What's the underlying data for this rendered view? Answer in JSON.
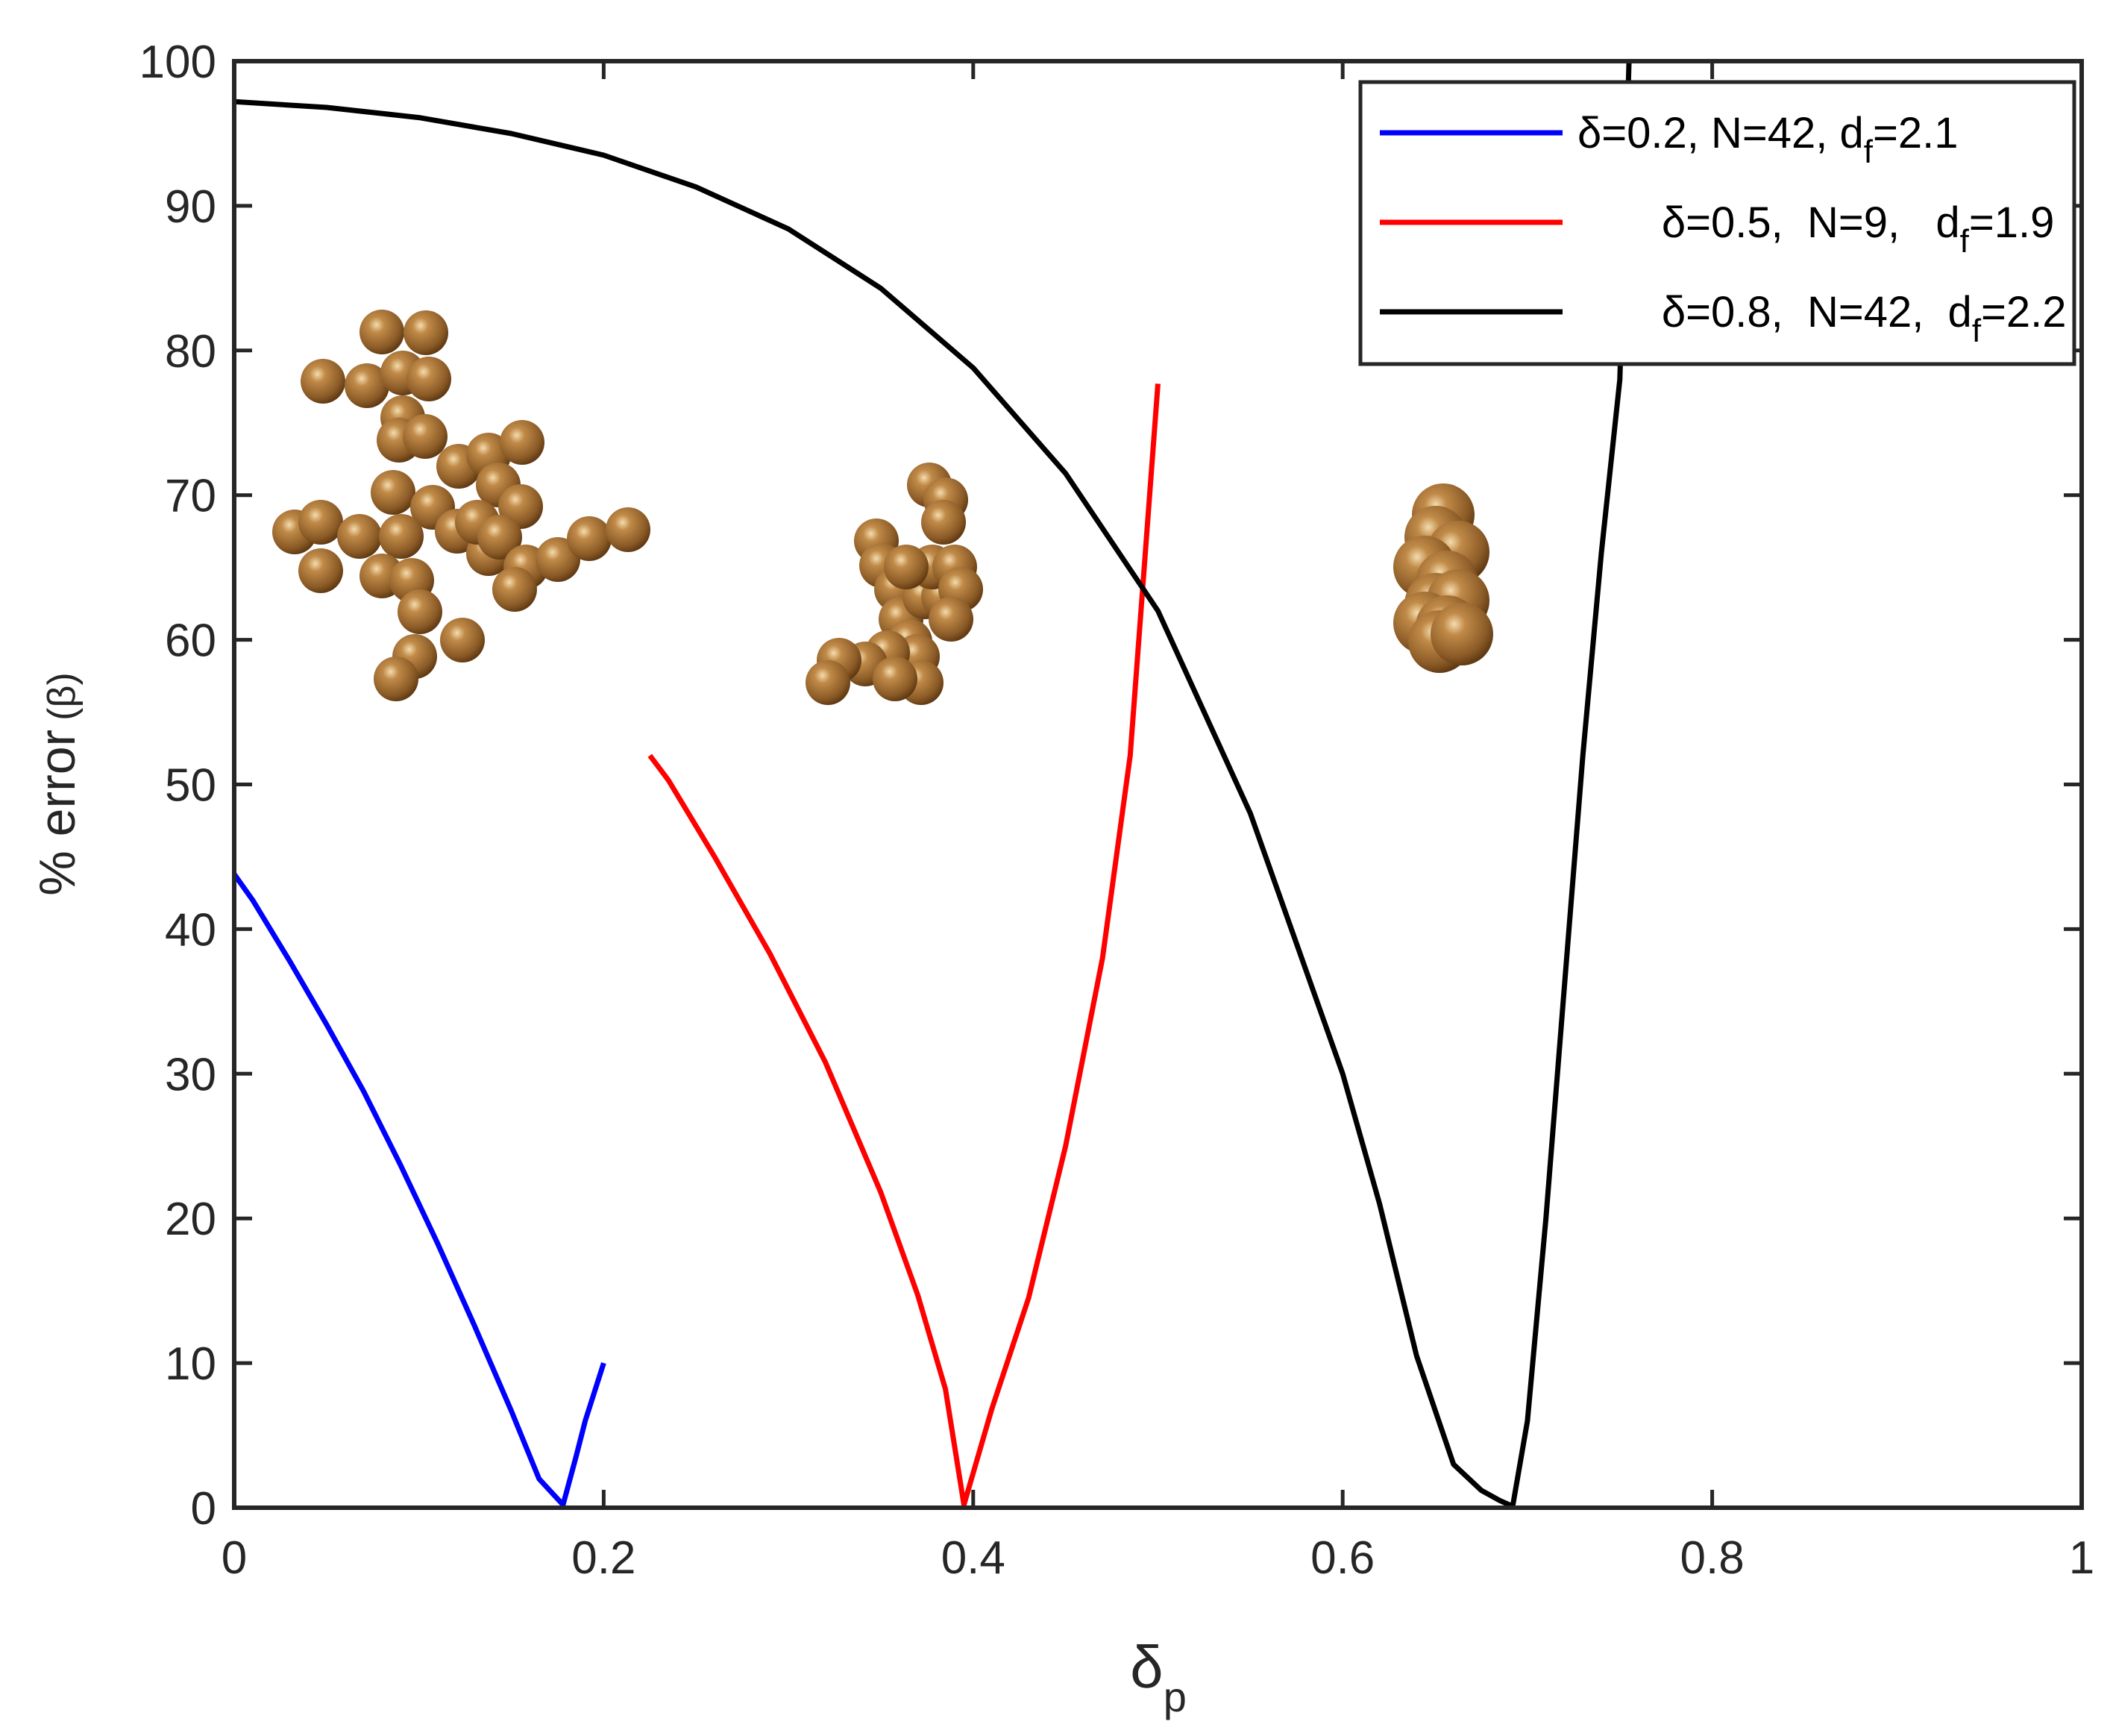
{
  "chart_data": {
    "type": "line",
    "title": "",
    "xlabel": {
      "main": "δ",
      "sub": "p"
    },
    "ylabel": {
      "main": "% error",
      "paren": "(β)"
    },
    "xlim": [
      0,
      1
    ],
    "ylim": [
      0,
      100
    ],
    "xticks": [
      0,
      0.2,
      0.4,
      0.6,
      0.8,
      1
    ],
    "xtick_labels": [
      "0",
      "0.2",
      "0.4",
      "0.6",
      "0.8",
      "1"
    ],
    "yticks": [
      0,
      10,
      20,
      30,
      40,
      50,
      60,
      70,
      80,
      90,
      100
    ],
    "ytick_labels": [
      "0",
      "10",
      "20",
      "30",
      "40",
      "50",
      "60",
      "70",
      "80",
      "90",
      "100"
    ],
    "grid": false,
    "legend_position": "top-right",
    "series": [
      {
        "name": "δ=0.2, N=42, d_f=2.1",
        "legend": {
          "prefix": "δ=0.2, N=42, d",
          "sub": "f",
          "suffix": "=2.1"
        },
        "color": "#0000ff",
        "x": [
          0,
          0.01,
          0.03,
          0.05,
          0.07,
          0.09,
          0.11,
          0.13,
          0.15,
          0.165,
          0.178,
          0.185,
          0.19,
          0.2
        ],
        "y": [
          43.8,
          42.0,
          37.8,
          33.4,
          28.8,
          23.7,
          18.3,
          12.6,
          6.7,
          2.0,
          0.2,
          3.5,
          6.0,
          10.0
        ]
      },
      {
        "name": "δ=0.5, N=9, d_f=1.9",
        "legend": {
          "prefix": "δ=0.5,  N=9,   d",
          "sub": "f",
          "suffix": "=1.9"
        },
        "color": "#ff0000",
        "x": [
          0.225,
          0.235,
          0.26,
          0.29,
          0.32,
          0.35,
          0.37,
          0.385,
          0.395,
          0.41,
          0.43,
          0.45,
          0.47,
          0.485,
          0.5
        ],
        "y": [
          52.0,
          50.3,
          45.0,
          38.3,
          30.8,
          21.8,
          14.7,
          8.2,
          0.2,
          6.8,
          14.5,
          25.0,
          38.0,
          52.0,
          77.7
        ]
      },
      {
        "name": "δ=0.8, N=42, d_f=2.2",
        "legend": {
          "prefix": "δ=0.8,  N=42,  d",
          "sub": "f",
          "suffix": "=2.2"
        },
        "color": "#000000",
        "x": [
          0,
          0.05,
          0.1,
          0.15,
          0.2,
          0.25,
          0.3,
          0.35,
          0.4,
          0.45,
          0.5,
          0.55,
          0.6,
          0.62,
          0.64,
          0.66,
          0.675,
          0.685,
          0.692,
          0.7,
          0.71,
          0.72,
          0.73,
          0.74,
          0.75,
          0.755
        ],
        "y": [
          97.2,
          96.8,
          96.1,
          95.0,
          93.5,
          91.3,
          88.4,
          84.3,
          78.8,
          71.5,
          62.0,
          48.0,
          30.0,
          21.0,
          10.5,
          3.0,
          1.2,
          0.5,
          0.1,
          6.0,
          20.0,
          36.0,
          52.0,
          66.0,
          78.0,
          100.0
        ]
      }
    ],
    "annotations": [
      {
        "kind": "aggregate-image",
        "description_name": "open aggregate δ=0.2",
        "anchor": [
          0.15,
          67
        ]
      },
      {
        "kind": "aggregate-image",
        "description_name": "compact aggregate δ=0.5",
        "anchor": [
          0.37,
          63
        ]
      },
      {
        "kind": "aggregate-image",
        "description_name": "dense aggregate δ=0.8",
        "anchor": [
          0.65,
          64
        ]
      }
    ]
  }
}
